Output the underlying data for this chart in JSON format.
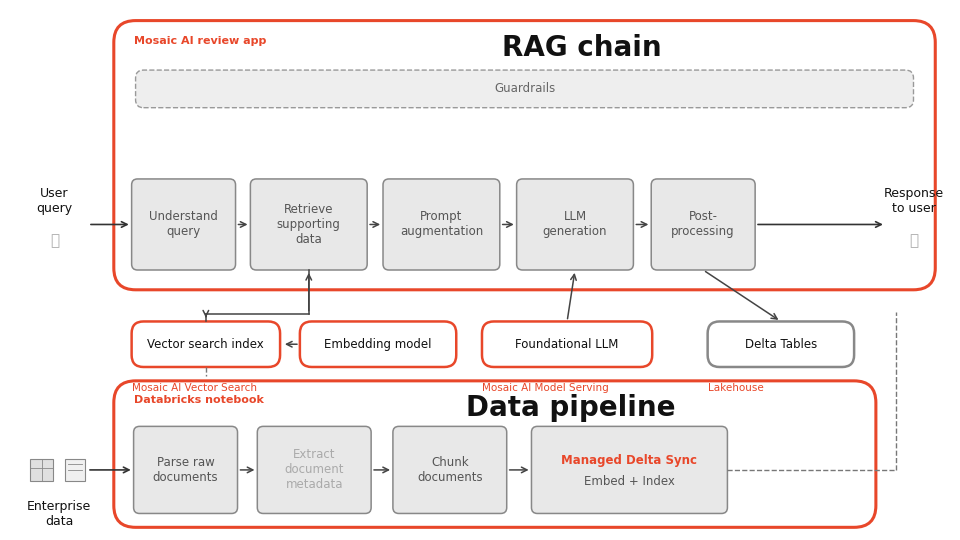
{
  "bg_color": "#ffffff",
  "orange": "#E8472A",
  "gray_box": "#e8e8e8",
  "gray_border": "#888888",
  "dark_gray_text": "#555555",
  "light_gray_text": "#aaaaaa",
  "black": "#111111",
  "guardrails_bg": "#eeeeee",
  "rag_title": "RAG chain",
  "rag_label": "Mosaic AI review app",
  "rag_boxes": [
    "Understand\nquery",
    "Retrieve\nsupporting\ndata",
    "Prompt\naugmentation",
    "LLM\ngeneration",
    "Post-\nprocessing"
  ],
  "guardrails_label": "Guardrails",
  "mid_boxes": [
    "Vector search index",
    "Embedding model",
    "Foundational LLM",
    "Delta Tables"
  ],
  "mid_sublabels": [
    "Mosaic AI Vector Search",
    "",
    "Mosaic AI Model Serving",
    "Lakehouse"
  ],
  "pipeline_title": "Data pipeline",
  "pipeline_label": "Databricks notebook",
  "pipeline_boxes": [
    "Parse raw\ndocuments",
    "Extract\ndocument\nmetadata",
    "Chunk\ndocuments",
    "Managed Delta Sync\nEmbed + Index"
  ],
  "user_label": "User\nquery",
  "response_label": "Response\nto user",
  "enterprise_label": "Enterprise\ndata"
}
